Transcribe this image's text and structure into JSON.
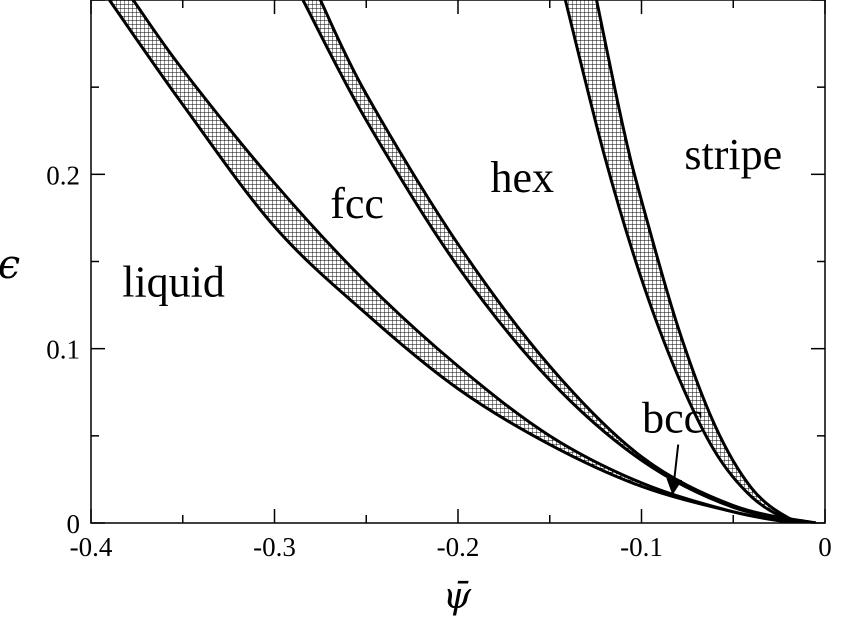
{
  "chart_data": {
    "type": "line",
    "title": "",
    "xlabel": "ψ̄",
    "ylabel": "ϵ",
    "xlim": [
      -0.4,
      0
    ],
    "ylim": [
      0,
      0.3
    ],
    "x_ticks": [
      {
        "value": -0.4,
        "label": "-0.4"
      },
      {
        "value": -0.3,
        "label": "-0.3"
      },
      {
        "value": -0.2,
        "label": "-0.2"
      },
      {
        "value": -0.1,
        "label": "-0.1"
      },
      {
        "value": 0,
        "label": "0"
      }
    ],
    "y_ticks": [
      {
        "value": 0,
        "label": "0"
      },
      {
        "value": 0.1,
        "label": "0.1"
      },
      {
        "value": 0.2,
        "label": "0.2"
      }
    ],
    "grid": false,
    "region_labels": [
      {
        "text": "liquid",
        "x": -0.355,
        "y": 0.13
      },
      {
        "text": "fcc",
        "x": -0.255,
        "y": 0.175
      },
      {
        "text": "hex",
        "x": -0.165,
        "y": 0.19
      },
      {
        "text": "stripe",
        "x": -0.05,
        "y": 0.203
      },
      {
        "text": "bcc",
        "x": -0.083,
        "y": 0.052
      }
    ],
    "bcc_arrow": {
      "from": [
        -0.08,
        0.045
      ],
      "to": [
        -0.083,
        0.017
      ]
    },
    "series": [
      {
        "points": [
          [
            -0.39,
            0.3
          ],
          [
            -0.35,
            0.24
          ],
          [
            -0.3,
            0.17
          ],
          [
            -0.25,
            0.12
          ],
          [
            -0.2,
            0.077
          ],
          [
            -0.15,
            0.045
          ],
          [
            -0.1,
            0.021
          ],
          [
            -0.05,
            0.0064
          ],
          [
            -0.017,
            0
          ]
        ]
      },
      {
        "points": [
          [
            -0.377,
            0.3
          ],
          [
            -0.35,
            0.26
          ],
          [
            -0.3,
            0.195
          ],
          [
            -0.25,
            0.138
          ],
          [
            -0.2,
            0.09
          ],
          [
            -0.15,
            0.05
          ],
          [
            -0.1,
            0.023
          ],
          [
            -0.05,
            0.0064
          ],
          [
            -0.017,
            0
          ]
        ]
      },
      {
        "points": [
          [
            -0.2845,
            0.3
          ],
          [
            -0.25,
            0.231
          ],
          [
            -0.2,
            0.147
          ],
          [
            -0.15,
            0.082
          ],
          [
            -0.1,
            0.036
          ],
          [
            -0.05,
            0.009
          ],
          [
            -0.005,
            0
          ]
        ]
      },
      {
        "points": [
          [
            -0.275,
            0.3
          ],
          [
            -0.25,
            0.246
          ],
          [
            -0.2,
            0.16
          ],
          [
            -0.15,
            0.09
          ],
          [
            -0.1,
            0.038
          ],
          [
            -0.05,
            0.01
          ],
          [
            -0.005,
            0
          ]
        ]
      },
      {
        "points": [
          [
            -0.1415,
            0.3
          ],
          [
            -0.12,
            0.21
          ],
          [
            -0.1,
            0.14
          ],
          [
            -0.08,
            0.084
          ],
          [
            -0.06,
            0.041
          ],
          [
            -0.04,
            0.015
          ],
          [
            -0.02,
            0.002
          ],
          [
            -0.005,
            0
          ]
        ]
      },
      {
        "points": [
          [
            -0.1245,
            0.3
          ],
          [
            -0.11,
            0.227
          ],
          [
            -0.1,
            0.185
          ],
          [
            -0.08,
            0.112
          ],
          [
            -0.06,
            0.056
          ],
          [
            -0.04,
            0.02
          ],
          [
            -0.02,
            0.003
          ],
          [
            -0.005,
            0
          ]
        ]
      }
    ],
    "hatched_bands": [
      {
        "lower_series": 0,
        "upper_series": 1
      },
      {
        "lower_series": 2,
        "upper_series": 3
      },
      {
        "lower_series": 4,
        "upper_series": 5
      }
    ]
  }
}
